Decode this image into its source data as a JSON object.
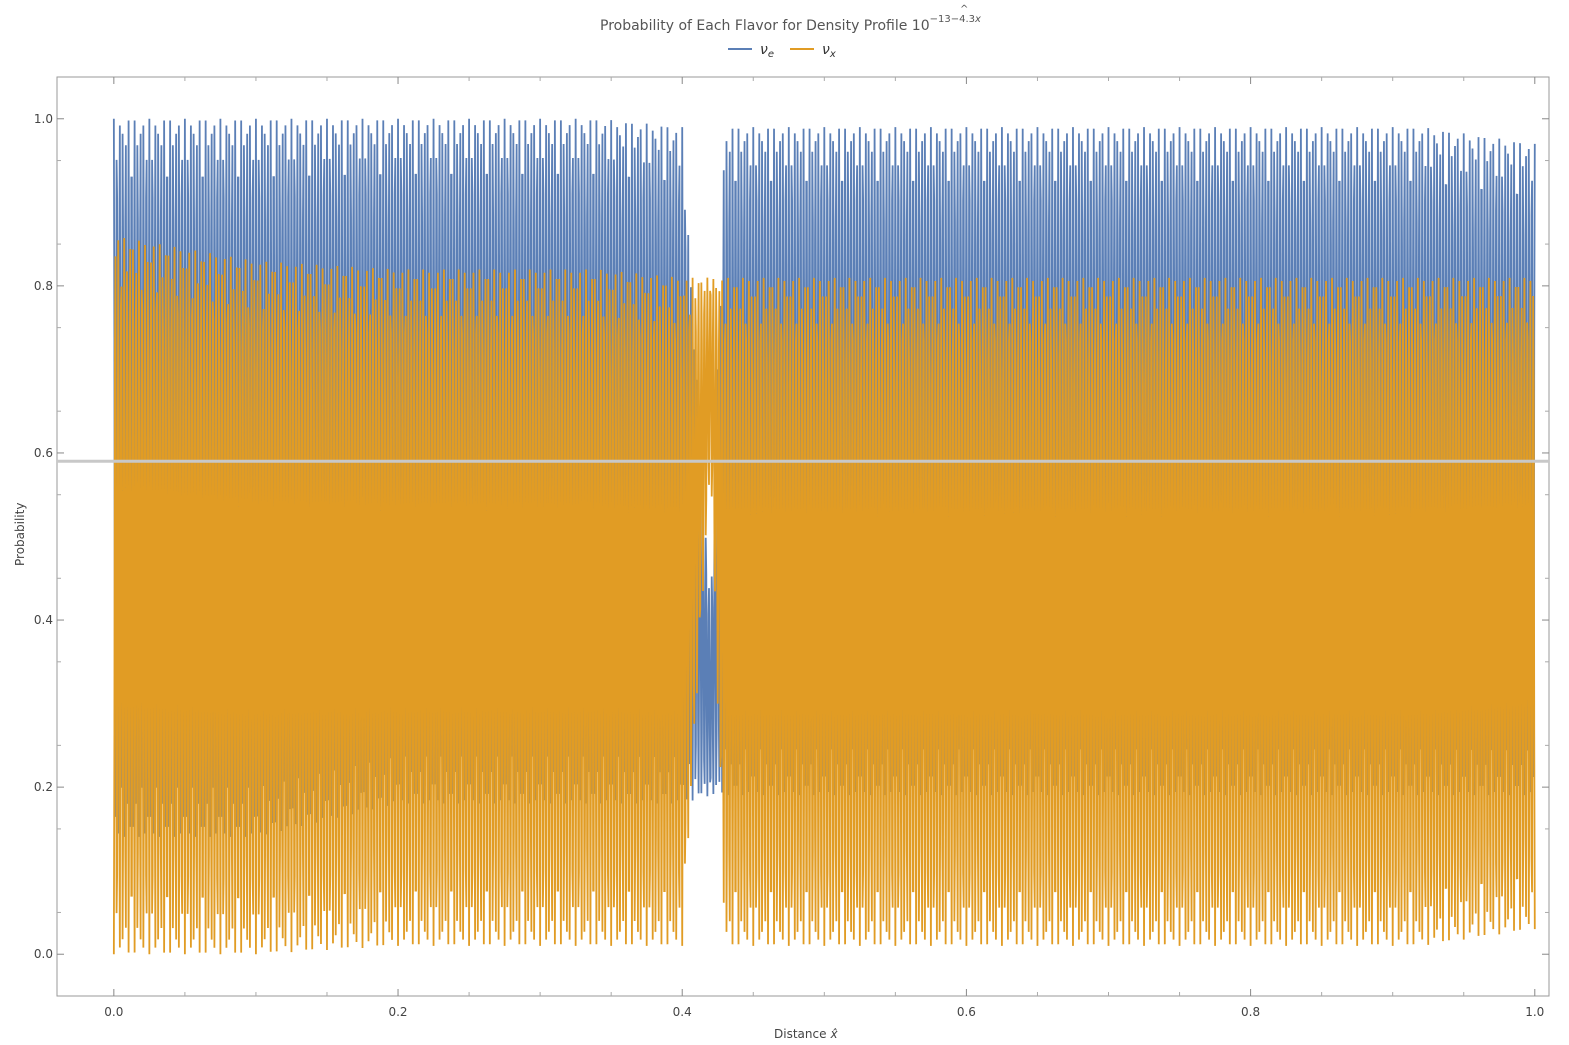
{
  "chart_data": {
    "type": "line",
    "title": "Probability of Each Flavor for Density Profile 10",
    "title_exponent": "−13−4.3",
    "title_exponent_var": "x",
    "title_exponent_hat": "^",
    "xlabel": "Distance",
    "xlabel_var": "x̂",
    "ylabel": "Probability",
    "xlim": [
      -0.04,
      1.01
    ],
    "ylim": [
      -0.05,
      1.05
    ],
    "xticks": [
      0.0,
      0.2,
      0.4,
      0.6,
      0.8,
      1.0
    ],
    "xtick_labels": [
      "0.0",
      "0.2",
      "0.4",
      "0.6",
      "0.8",
      "1.0"
    ],
    "yticks": [
      0.0,
      0.2,
      0.4,
      0.6,
      0.8,
      1.0
    ],
    "ytick_labels": [
      "0.0",
      "0.2",
      "0.4",
      "0.6",
      "0.8",
      "1.0"
    ],
    "legend_position": "top-center",
    "reference_line_y": 0.59,
    "colors": {
      "nu_e": "#5b7fb6",
      "nu_x": "#e19c24",
      "reference": "#c8c8c8"
    },
    "series": [
      {
        "name": "ν",
        "subscript": "e",
        "envelope": [
          [
            0.0,
            0.14,
            1.0
          ],
          [
            0.1,
            0.14,
            1.0
          ],
          [
            0.2,
            0.18,
            1.0
          ],
          [
            0.34,
            0.18,
            1.0
          ],
          [
            0.4,
            0.18,
            0.99
          ],
          [
            0.42,
            0.19,
            0.41
          ],
          [
            0.43,
            0.19,
            0.99
          ],
          [
            0.5,
            0.19,
            0.99
          ],
          [
            0.6,
            0.19,
            0.99
          ],
          [
            0.8,
            0.19,
            0.99
          ],
          [
            0.92,
            0.19,
            0.99
          ],
          [
            1.0,
            0.19,
            0.97
          ]
        ]
      },
      {
        "name": "ν",
        "subscript": "x",
        "envelope": [
          [
            0.0,
            0.0,
            0.86
          ],
          [
            0.1,
            0.0,
            0.83
          ],
          [
            0.2,
            0.01,
            0.82
          ],
          [
            0.34,
            0.01,
            0.82
          ],
          [
            0.4,
            0.01,
            0.81
          ],
          [
            0.42,
            0.59,
            0.81
          ],
          [
            0.43,
            0.01,
            0.81
          ],
          [
            0.5,
            0.01,
            0.81
          ],
          [
            0.6,
            0.01,
            0.81
          ],
          [
            0.8,
            0.01,
            0.81
          ],
          [
            0.92,
            0.01,
            0.81
          ],
          [
            1.0,
            0.03,
            0.81
          ]
        ]
      }
    ]
  }
}
